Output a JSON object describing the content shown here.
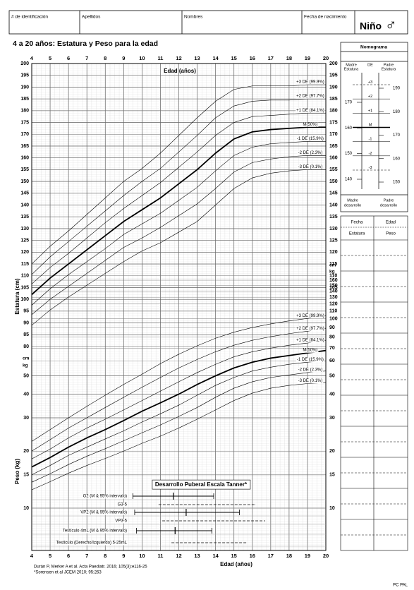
{
  "header": {
    "fields": [
      "# de identificación",
      "Apellidos",
      "Nombres",
      "Fecha de nacimiento"
    ],
    "sex_label": "Niño",
    "sex_symbol": "♂"
  },
  "chart_data": [
    {
      "type": "line",
      "title": "4 a 20 años: Estatura y Peso para la edad",
      "x_label": "Edad (años)",
      "y_label": "Estatura (cm)",
      "y_unit": "cm",
      "x": [
        4,
        5,
        6,
        7,
        8,
        9,
        10,
        11,
        12,
        13,
        14,
        15,
        16,
        17,
        18,
        19,
        20
      ],
      "xlim": [
        4,
        20
      ],
      "xticks": [
        4,
        5,
        6,
        7,
        8,
        9,
        10,
        11,
        12,
        13,
        14,
        15,
        16,
        17,
        18,
        19,
        20
      ],
      "ylim": [
        80,
        200
      ],
      "yticks": [
        80,
        85,
        90,
        95,
        100,
        105,
        110,
        115,
        120,
        125,
        130,
        135,
        140,
        145,
        150,
        155,
        160,
        165,
        170,
        175,
        180,
        185,
        190,
        195,
        200
      ],
      "y2lim": [
        80,
        200
      ],
      "y2ticks": [
        105,
        110,
        115,
        120,
        125,
        130,
        135,
        140,
        145,
        150,
        155,
        160,
        165,
        170,
        175,
        180,
        185,
        190,
        195,
        200
      ],
      "grid": true,
      "series": [
        {
          "name": "+3 DE (99.9%)",
          "color": "#000000",
          "width": 0.6,
          "values": [
            115,
            122.5,
            129,
            136,
            143,
            150,
            155.5,
            162,
            169.5,
            177,
            184,
            189,
            190.5,
            190.5,
            190.5,
            191,
            191
          ]
        },
        {
          "name": "+2 DE (97.7%)",
          "color": "#000000",
          "width": 0.6,
          "values": [
            110.5,
            118,
            124.5,
            131,
            137.5,
            144,
            150,
            155.5,
            162.5,
            169.5,
            177,
            182,
            184,
            184.5,
            184.5,
            185,
            185
          ]
        },
        {
          "name": "+1 DE (84.1%)",
          "color": "#000000",
          "width": 0.6,
          "values": [
            106.5,
            113.5,
            119.5,
            126,
            132.5,
            138.5,
            144,
            149.5,
            156,
            162.5,
            169.5,
            175,
            177.5,
            178,
            178.5,
            179,
            179
          ]
        },
        {
          "name": "M(50%)",
          "color": "#000000",
          "width": 1.8,
          "values": [
            102,
            109,
            115,
            121,
            127,
            133,
            138,
            143,
            149,
            155,
            162,
            168,
            171,
            172,
            172.5,
            173,
            173
          ]
        },
        {
          "name": "-1 DE (15.9%)",
          "color": "#000000",
          "width": 0.6,
          "values": [
            97.5,
            104.5,
            110.5,
            116,
            121.5,
            127.5,
            132,
            136.5,
            142,
            147.5,
            154.5,
            161,
            164.5,
            166,
            166.5,
            167,
            167
          ]
        },
        {
          "name": "-2 DE (2.3%)",
          "color": "#000000",
          "width": 0.6,
          "values": [
            93.5,
            100,
            105.5,
            111,
            116.5,
            122,
            126,
            130.5,
            135.5,
            140.5,
            147,
            154,
            158,
            159.5,
            160.5,
            161,
            161
          ]
        },
        {
          "name": "-3 DE (0.1%)",
          "color": "#000000",
          "width": 0.6,
          "values": [
            89,
            95.5,
            101,
            106,
            111,
            116,
            120.5,
            124,
            128.5,
            133,
            140,
            147,
            151.5,
            153.5,
            154.5,
            155,
            155
          ]
        }
      ]
    },
    {
      "type": "line",
      "x_label": "Edad (años)",
      "y_label": "Peso (kg)",
      "y_unit": "kg",
      "yscale": "log",
      "x": [
        4,
        5,
        6,
        7,
        8,
        9,
        10,
        11,
        12,
        13,
        14,
        15,
        16,
        17,
        18,
        19,
        20
      ],
      "xlim": [
        4,
        20
      ],
      "xticks": [
        4,
        5,
        6,
        7,
        8,
        9,
        10,
        11,
        12,
        13,
        14,
        15,
        16,
        17,
        18,
        19,
        20
      ],
      "ylim": [
        10,
        160
      ],
      "yticks": [
        10,
        15,
        20,
        30,
        40,
        50
      ],
      "y2lim": [
        10,
        160
      ],
      "y2ticks": [
        10,
        15,
        20,
        30,
        40,
        50,
        60,
        70,
        80,
        90,
        100,
        110,
        120,
        130,
        140,
        150,
        160
      ],
      "grid": true,
      "series": [
        {
          "name": "+3 DE (99.9%)",
          "color": "#000000",
          "width": 0.6,
          "values": [
            22.5,
            26,
            30,
            34.5,
            39.5,
            45,
            51,
            58,
            65,
            72,
            79,
            85,
            90,
            94,
            97.5,
            100.5,
            104
          ]
        },
        {
          "name": "+2 DE (97.7%)",
          "color": "#000000",
          "width": 0.6,
          "values": [
            20,
            23,
            26.5,
            30,
            34,
            38.5,
            43.5,
            49,
            55,
            61,
            67,
            72.5,
            77,
            80.5,
            83.5,
            86,
            89
          ]
        },
        {
          "name": "+1 DE (84.1%)",
          "color": "#000000",
          "width": 0.6,
          "values": [
            18.2,
            20.5,
            23.5,
            26.5,
            29.5,
            33,
            37,
            41.5,
            46.5,
            52,
            57.5,
            63,
            67,
            70,
            72.5,
            74.5,
            77
          ]
        },
        {
          "name": "M(50%)",
          "color": "#000000",
          "width": 1.8,
          "values": [
            16.5,
            18.5,
            21,
            23.5,
            26,
            29,
            32.5,
            36,
            40,
            45,
            50,
            55,
            59,
            62,
            64,
            66,
            68
          ]
        },
        {
          "name": "-1 DE (15.9%)",
          "color": "#000000",
          "width": 0.6,
          "values": [
            15,
            16.8,
            19,
            21,
            23.2,
            25.6,
            28.5,
            31.5,
            35,
            39.5,
            44.5,
            49,
            53,
            55.5,
            57.5,
            59,
            60
          ]
        },
        {
          "name": "-2 DE (2.3%)",
          "color": "#000000",
          "width": 0.6,
          "values": [
            13.7,
            15.2,
            17,
            18.8,
            20.6,
            22.7,
            25,
            27.5,
            30.5,
            34,
            38.5,
            43,
            46.5,
            49,
            50.5,
            52,
            53
          ]
        },
        {
          "name": "-3 DE (0.1%)",
          "color": "#000000",
          "width": 0.6,
          "values": [
            12.5,
            13.8,
            15.3,
            16.8,
            18.3,
            20,
            22,
            24,
            26.5,
            29.5,
            33,
            37,
            40.5,
            43,
            44.5,
            45.5,
            46
          ]
        }
      ],
      "tanner": {
        "title": "Desarrollo Puberal Escala Tanner*",
        "rows": [
          {
            "label": "G2 (M & 95% intervalo)",
            "start": 9.5,
            "median": 11.7,
            "end": 13.9,
            "style": "solid"
          },
          {
            "label": "G3-5",
            "start": 10.9,
            "end": 16.2,
            "style": "dashed"
          },
          {
            "label": "VP2 (M & 95% intervalo)",
            "start": 9.6,
            "median": 12.4,
            "end": 15.3,
            "style": "solid"
          },
          {
            "label": "VP3-5",
            "start": 11.1,
            "end": 16.7,
            "style": "dashed"
          },
          {
            "label": "Testículo 4mL (M & 95% intervalo)",
            "start": 9.7,
            "median": 11.8,
            "end": 13.8,
            "style": "solid"
          },
          {
            "label": "Testículo (Derecho/Izquierdo) 5-25mL",
            "start": 11.6,
            "end": 15.7,
            "style": "dashed"
          }
        ]
      }
    }
  ],
  "nomogram": {
    "title": "Nomograma",
    "mother_header": [
      "Madre",
      "Estatura"
    ],
    "de_header": "DE",
    "father_header": [
      "Padre",
      "Estatura"
    ],
    "mother_ticks": [
      140,
      150,
      160,
      170
    ],
    "father_ticks": [
      150,
      160,
      170,
      180,
      190
    ],
    "de_labels": [
      "+3",
      "+2",
      "+1",
      "M",
      "-1",
      "-2",
      "-3"
    ],
    "mother_footer": [
      "Madre",
      "desarrollo"
    ],
    "father_footer": [
      "Padre",
      "desarrollo"
    ]
  },
  "log_table": {
    "headers": [
      [
        "Fecha",
        "Edad"
      ],
      [
        "Estatura",
        "Peso"
      ]
    ]
  },
  "footnotes": [
    "Durán P, Merker A et al. Acta Paediatr. 2016; 105(3):e116-25",
    "*Sorensen et al JCEM 2010; 95:263"
  ],
  "footer": "PC PAL"
}
